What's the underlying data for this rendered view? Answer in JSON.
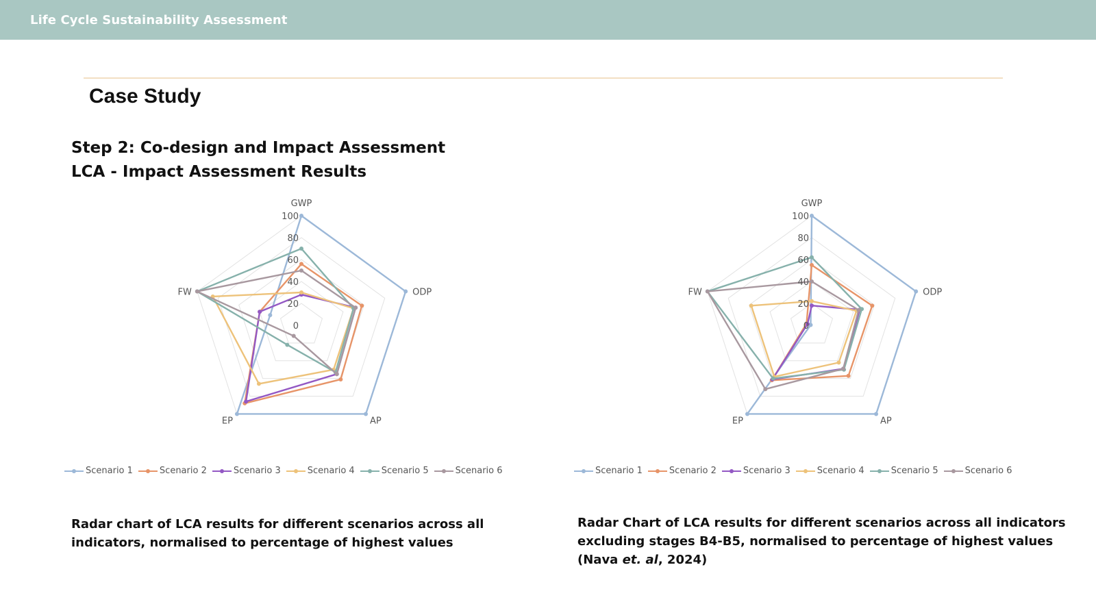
{
  "header": {
    "title": "Life Cycle Sustainability Assessment"
  },
  "page": {
    "title": "Case Study",
    "step_line1": "Step 2: Co-design and Impact Assessment",
    "step_line2": "LCA - Impact Assessment Results"
  },
  "colors": {
    "header_bg": "#a9c7c2",
    "rule": "#f3dfc2",
    "Scenario 1": "#9cb8d8",
    "Scenario 2": "#e79468",
    "Scenario 3": "#9358c4",
    "Scenario 4": "#edc27a",
    "Scenario 5": "#86b1ab",
    "Scenario 6": "#a8989f"
  },
  "chart_data": [
    {
      "type": "radar",
      "axes": [
        "GWP",
        "ODP",
        "AP",
        "EP",
        "FW"
      ],
      "ticks": [
        "0",
        "20",
        "40",
        "60",
        "80",
        "100"
      ],
      "range": [
        0,
        100
      ],
      "legend_position": "bottom",
      "series": [
        {
          "name": "Scenario 1",
          "values": [
            100,
            100,
            100,
            100,
            30
          ]
        },
        {
          "name": "Scenario 2",
          "values": [
            56,
            58,
            61,
            88,
            40
          ]
        },
        {
          "name": "Scenario 3",
          "values": [
            28,
            52,
            55,
            86,
            40
          ]
        },
        {
          "name": "Scenario 4",
          "values": [
            30,
            50,
            50,
            66,
            85
          ]
        },
        {
          "name": "Scenario 5",
          "values": [
            70,
            50,
            53,
            22,
            100
          ]
        },
        {
          "name": "Scenario 6",
          "values": [
            50,
            52,
            55,
            12,
            100
          ]
        }
      ],
      "caption": "Radar chart of LCA results for different scenarios across all indicators, normalised to percentage of highest values"
    },
    {
      "type": "radar",
      "axes": [
        "GWP",
        "ODP",
        "AP",
        "EP",
        "FW"
      ],
      "ticks": [
        "0",
        "20",
        "40",
        "60",
        "80",
        "100"
      ],
      "range": [
        0,
        100
      ],
      "legend_position": "bottom",
      "series": [
        {
          "name": "Scenario 1",
          "values": [
            100,
            100,
            100,
            100,
            1
          ]
        },
        {
          "name": "Scenario 2",
          "values": [
            55,
            58,
            57,
            62,
            5
          ]
        },
        {
          "name": "Scenario 3",
          "values": [
            18,
            46,
            49,
            61,
            4
          ]
        },
        {
          "name": "Scenario 4",
          "values": [
            22,
            43,
            42,
            58,
            58
          ]
        },
        {
          "name": "Scenario 5",
          "values": [
            62,
            48,
            50,
            60,
            100
          ]
        },
        {
          "name": "Scenario 6",
          "values": [
            40,
            45,
            49,
            72,
            100
          ]
        }
      ],
      "caption_line1": "Radar Chart of LCA results for different scenarios across all indicators",
      "caption_line2": "excluding stages B4-B5, normalised to percentage of highest values",
      "caption_pre": "(Nava ",
      "caption_italic": "et. al",
      "caption_post": ", 2024)"
    }
  ]
}
